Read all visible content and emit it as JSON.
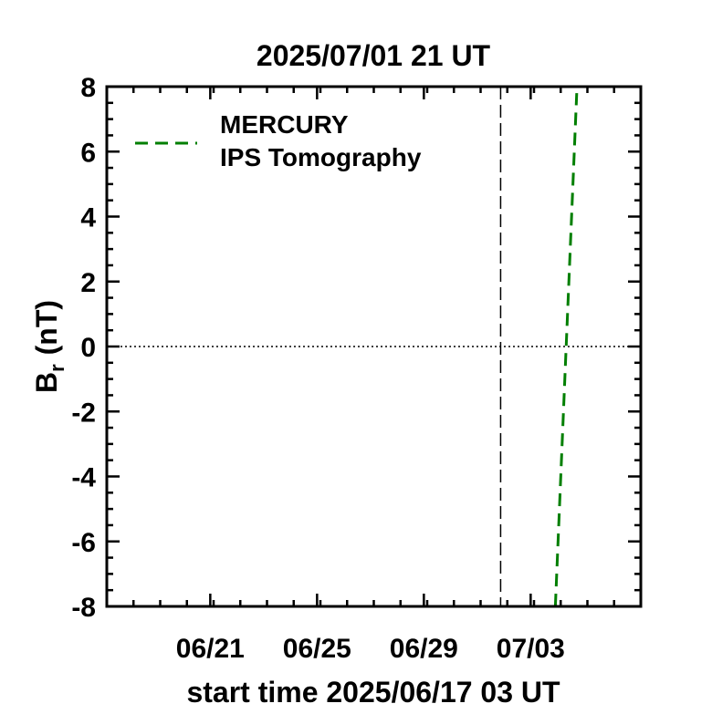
{
  "chart_data": {
    "type": "line",
    "title": "2025/07/01 21 UT",
    "xlabel": "start time 2025/06/17 03 UT",
    "ylabel_main": "B",
    "ylabel_sub": "r",
    "ylabel_unit": "(nT)",
    "x_unit": "days after start time",
    "xlim": [
      0,
      20
    ],
    "ylim": [
      -8,
      8
    ],
    "x_ticks": [
      {
        "x": 3.875,
        "label": "06/21"
      },
      {
        "x": 7.875,
        "label": "06/25"
      },
      {
        "x": 11.875,
        "label": "06/29"
      },
      {
        "x": 15.875,
        "label": "07/03"
      }
    ],
    "y_ticks": [
      -8,
      -6,
      -4,
      -2,
      0,
      2,
      4,
      6,
      8
    ],
    "current_time_x": 14.75,
    "zero_line": true,
    "grid": false,
    "legend": {
      "position": "top-left",
      "line1": "MERCURY",
      "line2": "IPS Tomography"
    },
    "series": [
      {
        "name": "MERCURY IPS Tomography",
        "color": "#007f00",
        "dash": "dashed",
        "x": [
          16.8,
          17.6
        ],
        "y": [
          -8.0,
          7.8
        ]
      }
    ]
  }
}
